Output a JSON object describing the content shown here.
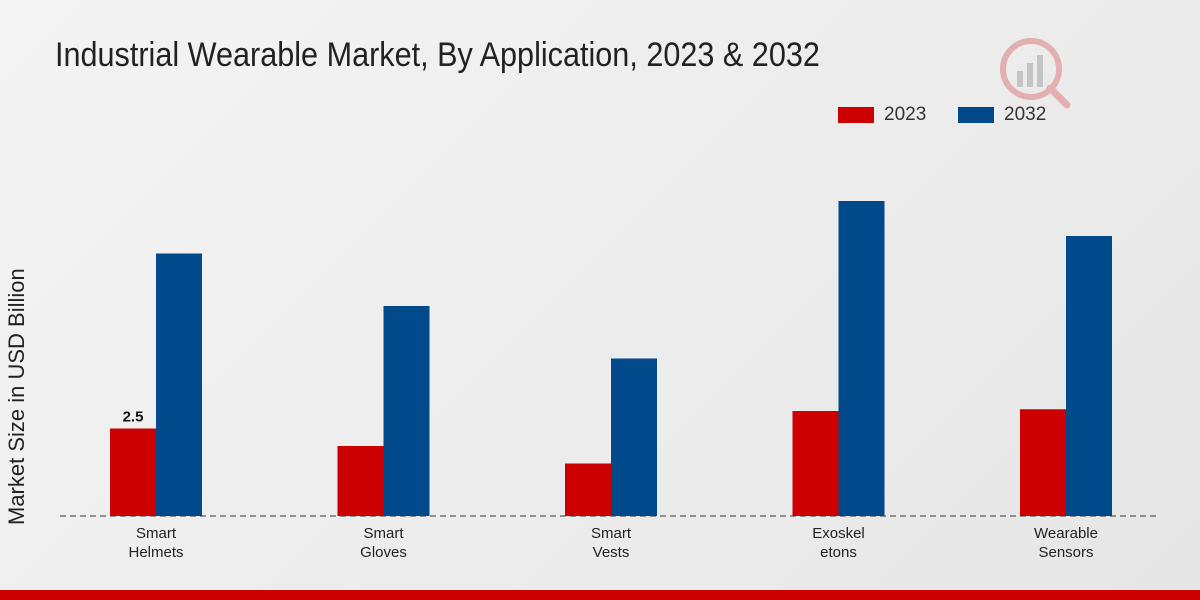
{
  "chart_data": {
    "type": "bar",
    "title": "Industrial Wearable Market, By Application, 2023 & 2032",
    "xlabel": "",
    "ylabel": "Market Size in USD Billion",
    "categories": [
      [
        "Smart",
        "Helmets"
      ],
      [
        "Smart",
        "Gloves"
      ],
      [
        "Smart",
        "Vests"
      ],
      [
        "Exoskel",
        "etons"
      ],
      [
        "Wearable",
        "Sensors"
      ]
    ],
    "series": [
      {
        "name": "2023",
        "color": "#cc0000",
        "values": [
          2.5,
          2.0,
          1.5,
          3.0,
          3.05
        ]
      },
      {
        "name": "2032",
        "color": "#004a8c",
        "values": [
          7.5,
          6.0,
          4.5,
          9.0,
          8.0
        ]
      }
    ],
    "data_labels": [
      {
        "series": 0,
        "index": 0,
        "text": "2.5"
      }
    ],
    "ylim": [
      0,
      10
    ],
    "grid": false,
    "legend_position": "top-right"
  }
}
